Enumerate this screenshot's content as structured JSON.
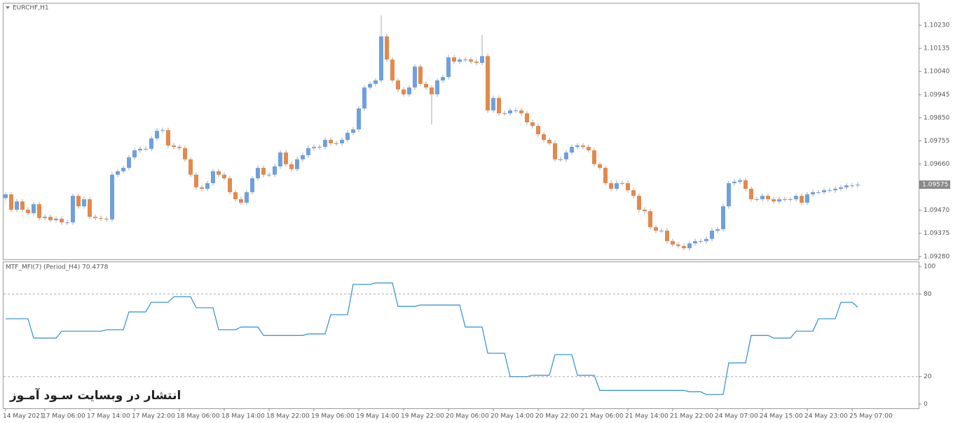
{
  "chart_data": [
    {
      "type": "candlestick",
      "title": "EURCHF,H1",
      "categories": [
        "14 May 2021",
        null,
        null,
        null,
        null,
        null,
        null,
        "17 May 06:00",
        null,
        null,
        null,
        null,
        null,
        null,
        null,
        "17 May 14:00",
        null,
        null,
        null,
        null,
        null,
        null,
        null,
        "17 May 22:00",
        null,
        null,
        null,
        null,
        null,
        null,
        null,
        "18 May 06:00",
        null,
        null,
        null,
        null,
        null,
        null,
        null,
        "18 May 14:00",
        null,
        null,
        null,
        null,
        null,
        null,
        null,
        "18 May 22:00",
        null,
        null,
        null,
        null,
        null,
        null,
        null,
        "19 May 06:00",
        null,
        null,
        null,
        null,
        null,
        null,
        null,
        "19 May 14:00",
        null,
        null,
        null,
        null,
        null,
        null,
        null,
        "19 May 22:00",
        null,
        null,
        null,
        null,
        null,
        null,
        null,
        "20 May 06:00",
        null,
        null,
        null,
        null,
        null,
        null,
        null,
        "20 May 14:00",
        null,
        null,
        null,
        null,
        null,
        null,
        null,
        "20 May 22:00",
        null,
        null,
        null,
        null,
        null,
        null,
        null,
        "21 May 06:00",
        null,
        null,
        null,
        null,
        null,
        null,
        null,
        "21 May 14:00",
        null,
        null,
        null,
        null,
        null,
        null,
        null,
        "21 May 22:00",
        null,
        null,
        null,
        null,
        null,
        null,
        null,
        "24 May 07:00",
        null,
        null,
        null,
        null,
        null,
        null,
        null,
        "24 May 15:00",
        null,
        null,
        null,
        null,
        null,
        null,
        null,
        "24 May 23:00",
        null,
        null,
        null,
        null,
        null,
        null,
        null,
        "25 May 07:00",
        null
      ],
      "ohlc": [
        [
          1.0952,
          1.09545,
          1.0951,
          1.09535
        ],
        [
          1.09535,
          1.09545,
          1.09462,
          1.09472
        ],
        [
          1.09472,
          1.09516,
          1.09462,
          1.09506
        ],
        [
          1.09506,
          1.09516,
          1.09462,
          1.09472
        ],
        [
          1.09472,
          1.09482,
          1.09448,
          1.09458
        ],
        [
          1.09458,
          1.09505,
          1.09448,
          1.09495
        ],
        [
          1.09495,
          1.09505,
          1.09428,
          1.09438
        ],
        [
          1.09438,
          1.09453,
          1.09428,
          1.09443
        ],
        [
          1.09443,
          1.09453,
          1.09419,
          1.09429
        ],
        [
          1.09429,
          1.09445,
          1.09419,
          1.09435
        ],
        [
          1.09435,
          1.09445,
          1.0941,
          1.0942
        ],
        [
          1.0942,
          1.0943,
          1.0941,
          1.0942
        ],
        [
          1.0942,
          1.09539,
          1.0941,
          1.09529
        ],
        [
          1.09529,
          1.09539,
          1.09476,
          1.09486
        ],
        [
          1.09486,
          1.09525,
          1.09476,
          1.09515
        ],
        [
          1.09515,
          1.09525,
          1.09433,
          1.09443
        ],
        [
          1.09443,
          1.09453,
          1.09428,
          1.09438
        ],
        [
          1.09438,
          1.09448,
          1.09425,
          1.09435
        ],
        [
          1.09435,
          1.09445,
          1.09422,
          1.09432
        ],
        [
          1.09432,
          1.09626,
          1.09422,
          1.09616
        ],
        [
          1.09616,
          1.0964,
          1.09606,
          1.0963
        ],
        [
          1.0963,
          1.09654,
          1.0962,
          1.09644
        ],
        [
          1.09644,
          1.09697,
          1.09634,
          1.09687
        ],
        [
          1.09687,
          1.09726,
          1.09677,
          1.09716
        ],
        [
          1.09716,
          1.09732,
          1.09706,
          1.09722
        ],
        [
          1.09722,
          1.09732,
          1.09712,
          1.09722
        ],
        [
          1.09722,
          1.09775,
          1.09712,
          1.09765
        ],
        [
          1.09765,
          1.09806,
          1.09755,
          1.09796
        ],
        [
          1.09796,
          1.09809,
          1.09786,
          1.09799
        ],
        [
          1.09799,
          1.09809,
          1.09726,
          1.09736
        ],
        [
          1.09736,
          1.09746,
          1.0972,
          1.0973
        ],
        [
          1.0973,
          1.0974,
          1.09715,
          1.09725
        ],
        [
          1.09725,
          1.09735,
          1.09669,
          1.09679
        ],
        [
          1.09679,
          1.09689,
          1.09606,
          1.09616
        ],
        [
          1.09616,
          1.09626,
          1.09554,
          1.09564
        ],
        [
          1.09564,
          1.09574,
          1.09548,
          1.09558
        ],
        [
          1.09558,
          1.09591,
          1.09548,
          1.09581
        ],
        [
          1.09581,
          1.0964,
          1.09571,
          1.0963
        ],
        [
          1.0963,
          1.0964,
          1.09606,
          1.09616
        ],
        [
          1.09616,
          1.09626,
          1.09591,
          1.09601
        ],
        [
          1.09601,
          1.09611,
          1.09534,
          1.09544
        ],
        [
          1.09544,
          1.09554,
          1.09505,
          1.09515
        ],
        [
          1.09515,
          1.09525,
          1.09491,
          1.09501
        ],
        [
          1.09501,
          1.09554,
          1.09491,
          1.09544
        ],
        [
          1.09544,
          1.09611,
          1.09534,
          1.09601
        ],
        [
          1.09601,
          1.09654,
          1.09591,
          1.09644
        ],
        [
          1.09644,
          1.09654,
          1.09606,
          1.09616
        ],
        [
          1.09616,
          1.09626,
          1.09606,
          1.09616
        ],
        [
          1.09616,
          1.0966,
          1.09606,
          1.0965
        ],
        [
          1.0965,
          1.09717,
          1.0964,
          1.09707
        ],
        [
          1.09707,
          1.09717,
          1.09649,
          1.09659
        ],
        [
          1.09659,
          1.09669,
          1.09629,
          1.09639
        ],
        [
          1.09639,
          1.09689,
          1.09629,
          1.09679
        ],
        [
          1.09679,
          1.09706,
          1.09669,
          1.09696
        ],
        [
          1.09696,
          1.09735,
          1.09686,
          1.09725
        ],
        [
          1.09725,
          1.0974,
          1.09715,
          1.0973
        ],
        [
          1.0973,
          1.0974,
          1.0972,
          1.0973
        ],
        [
          1.0973,
          1.09769,
          1.0972,
          1.09759
        ],
        [
          1.09759,
          1.09769,
          1.09735,
          1.09745
        ],
        [
          1.09745,
          1.09755,
          1.09735,
          1.09745
        ],
        [
          1.09745,
          1.09769,
          1.09735,
          1.09759
        ],
        [
          1.09759,
          1.09798,
          1.09749,
          1.09788
        ],
        [
          1.09788,
          1.09812,
          1.09778,
          1.09802
        ],
        [
          1.09802,
          1.09898,
          1.09792,
          1.09888
        ],
        [
          1.09888,
          1.09984,
          1.09878,
          1.09974
        ],
        [
          1.09974,
          1.09999,
          1.09964,
          1.09989
        ],
        [
          1.09989,
          1.10013,
          1.09979,
          1.10003
        ],
        [
          1.10003,
          1.1027,
          1.09993,
          1.10184
        ],
        [
          1.10184,
          1.10194,
          1.10079,
          1.10089
        ],
        [
          1.10089,
          1.10099,
          1.09993,
          1.10003
        ],
        [
          1.10003,
          1.10013,
          1.09956,
          1.09966
        ],
        [
          1.09966,
          1.09976,
          1.09936,
          1.09946
        ],
        [
          1.09946,
          1.09984,
          1.09936,
          1.09974
        ],
        [
          1.09974,
          1.1007,
          1.09964,
          1.1006
        ],
        [
          1.1006,
          1.1007,
          1.09979,
          1.09989
        ],
        [
          1.09989,
          1.09999,
          1.09964,
          1.09974
        ],
        [
          1.09974,
          1.09984,
          1.09822,
          1.09946
        ],
        [
          1.09946,
          1.10013,
          1.09936,
          1.10003
        ],
        [
          1.10003,
          1.10027,
          1.09993,
          1.10017
        ],
        [
          1.10017,
          1.10108,
          1.10007,
          1.10098
        ],
        [
          1.10098,
          1.10108,
          1.1007,
          1.1008
        ],
        [
          1.1008,
          1.10099,
          1.1007,
          1.10089
        ],
        [
          1.10089,
          1.10099,
          1.10079,
          1.10089
        ],
        [
          1.10089,
          1.10099,
          1.1007,
          1.1008
        ],
        [
          1.1008,
          1.1009,
          1.10065,
          1.10075
        ],
        [
          1.10075,
          1.1019,
          1.10065,
          1.10103
        ],
        [
          1.10103,
          1.10113,
          1.0987,
          1.0988
        ],
        [
          1.0988,
          1.09941,
          1.0987,
          1.09931
        ],
        [
          1.09931,
          1.09941,
          1.09858,
          1.09868
        ],
        [
          1.09868,
          1.09878,
          1.09858,
          1.09868
        ],
        [
          1.09868,
          1.0989,
          1.09858,
          1.0988
        ],
        [
          1.0988,
          1.0989,
          1.0987,
          1.0988
        ],
        [
          1.0988,
          1.0989,
          1.09858,
          1.09868
        ],
        [
          1.09868,
          1.09878,
          1.09821,
          1.09831
        ],
        [
          1.09831,
          1.09841,
          1.09806,
          1.09816
        ],
        [
          1.09816,
          1.09826,
          1.09772,
          1.09782
        ],
        [
          1.09782,
          1.09792,
          1.09749,
          1.09759
        ],
        [
          1.09759,
          1.09769,
          1.09735,
          1.09745
        ],
        [
          1.09745,
          1.09755,
          1.09669,
          1.09679
        ],
        [
          1.09679,
          1.09689,
          1.09669,
          1.09679
        ],
        [
          1.09679,
          1.09717,
          1.09669,
          1.09707
        ],
        [
          1.09707,
          1.0974,
          1.09697,
          1.0973
        ],
        [
          1.0973,
          1.09746,
          1.0972,
          1.09736
        ],
        [
          1.09736,
          1.09746,
          1.0972,
          1.0973
        ],
        [
          1.0973,
          1.0974,
          1.09706,
          1.09716
        ],
        [
          1.09716,
          1.09726,
          1.09649,
          1.09659
        ],
        [
          1.09659,
          1.09669,
          1.09634,
          1.09644
        ],
        [
          1.09644,
          1.09654,
          1.09571,
          1.09581
        ],
        [
          1.09581,
          1.09591,
          1.09548,
          1.09558
        ],
        [
          1.09558,
          1.09591,
          1.09548,
          1.09581
        ],
        [
          1.09581,
          1.09591,
          1.09571,
          1.09581
        ],
        [
          1.09581,
          1.09591,
          1.09542,
          1.09552
        ],
        [
          1.09552,
          1.09562,
          1.09519,
          1.09529
        ],
        [
          1.09529,
          1.09539,
          1.09462,
          1.09472
        ],
        [
          1.09472,
          1.09482,
          1.09456,
          1.09466
        ],
        [
          1.09466,
          1.09476,
          1.0939,
          1.094
        ],
        [
          1.094,
          1.0941,
          1.09376,
          1.09386
        ],
        [
          1.09386,
          1.09396,
          1.09376,
          1.09386
        ],
        [
          1.09386,
          1.09396,
          1.09333,
          1.09343
        ],
        [
          1.09343,
          1.09353,
          1.09319,
          1.09329
        ],
        [
          1.09329,
          1.09339,
          1.09313,
          1.09323
        ],
        [
          1.09323,
          1.09333,
          1.09304,
          1.09314
        ],
        [
          1.09314,
          1.09344,
          1.09304,
          1.09334
        ],
        [
          1.09334,
          1.09353,
          1.09324,
          1.09343
        ],
        [
          1.09343,
          1.09353,
          1.09333,
          1.09343
        ],
        [
          1.09343,
          1.09362,
          1.09333,
          1.09352
        ],
        [
          1.09352,
          1.09396,
          1.09342,
          1.09386
        ],
        [
          1.09386,
          1.09402,
          1.09376,
          1.09392
        ],
        [
          1.09392,
          1.09496,
          1.09382,
          1.09486
        ],
        [
          1.09486,
          1.09591,
          1.09476,
          1.09581
        ],
        [
          1.09581,
          1.09597,
          1.09571,
          1.09587
        ],
        [
          1.09587,
          1.09603,
          1.09577,
          1.09593
        ],
        [
          1.09593,
          1.09603,
          1.09548,
          1.09558
        ],
        [
          1.09558,
          1.09568,
          1.09505,
          1.09515
        ],
        [
          1.09515,
          1.09525,
          1.09505,
          1.09515
        ],
        [
          1.09515,
          1.09539,
          1.09505,
          1.09529
        ],
        [
          1.09529,
          1.09539,
          1.09505,
          1.09515
        ],
        [
          1.09515,
          1.09525,
          1.09496,
          1.09506
        ],
        [
          1.09506,
          1.09525,
          1.09496,
          1.09515
        ],
        [
          1.09515,
          1.09525,
          1.09505,
          1.09515
        ],
        [
          1.09515,
          1.09525,
          1.09505,
          1.09515
        ],
        [
          1.09515,
          1.09539,
          1.09505,
          1.09529
        ],
        [
          1.09529,
          1.09539,
          1.09491,
          1.09501
        ],
        [
          1.09501,
          1.09545,
          1.09491,
          1.09535
        ],
        [
          1.09535,
          1.09554,
          1.09525,
          1.09544
        ],
        [
          1.09544,
          1.09554,
          1.09534,
          1.09544
        ],
        [
          1.09544,
          1.09562,
          1.09534,
          1.09552
        ],
        [
          1.09552,
          1.09562,
          1.09542,
          1.09552
        ],
        [
          1.09552,
          1.09568,
          1.09542,
          1.09558
        ],
        [
          1.09558,
          1.09574,
          1.09548,
          1.09564
        ],
        [
          1.09564,
          1.09582,
          1.09554,
          1.09572
        ],
        [
          1.09572,
          1.09582,
          1.09562,
          1.09572
        ],
        [
          1.09572,
          1.09585,
          1.09562,
          1.09575
        ]
      ],
      "up_color": "#6fa0dc",
      "down_color": "#e3894b",
      "wick_color": "#a8a8a8",
      "ylim": [
        1.09268,
        1.10322
      ],
      "yticks": [
        {
          "value": 1.1023,
          "label": "1.10230"
        },
        1.10135,
        {
          "value": 1.1004,
          "label": "1.10040"
        },
        1.09945,
        {
          "value": 1.0985,
          "label": "1.09850"
        },
        1.09755,
        {
          "value": 1.0966,
          "label": "1.09660"
        },
        {
          "value": 1.0947,
          "label": "1.09470"
        },
        1.09375,
        {
          "value": 1.0928,
          "label": "1.09280"
        }
      ]
    },
    {
      "type": "line",
      "title": "MTF_MFI(7) (Period_H4) 70.4778",
      "color": "#2a8fd0",
      "values": [
        62,
        62,
        62,
        62,
        62,
        48,
        48,
        48,
        48,
        48,
        53,
        53,
        53,
        53,
        53,
        53,
        53,
        53,
        54,
        54,
        54,
        54,
        67,
        67,
        67,
        67,
        74,
        74,
        74,
        74,
        78,
        78,
        78,
        78,
        70,
        70,
        70,
        70,
        54,
        54,
        54,
        54,
        56,
        56,
        56,
        56,
        50,
        50,
        50,
        50,
        50,
        50,
        50,
        50,
        51,
        51,
        51,
        51,
        65,
        65,
        65,
        65,
        87,
        87,
        87,
        87,
        88,
        88,
        88,
        88,
        71,
        71,
        71,
        71,
        72,
        72,
        72,
        72,
        72,
        72,
        72,
        72,
        56,
        56,
        56,
        56,
        37,
        37,
        37,
        37,
        20,
        20,
        20,
        20,
        21,
        21,
        21,
        21,
        36,
        36,
        36,
        36,
        21,
        21,
        21,
        21,
        10,
        10,
        10,
        10,
        10,
        10,
        10,
        10,
        10,
        10,
        10,
        10,
        10,
        10,
        10,
        10,
        9,
        9,
        9,
        7,
        7,
        7,
        7,
        30,
        30,
        30,
        30,
        50,
        50,
        50,
        50,
        48,
        48,
        48,
        48,
        53,
        53,
        53,
        53,
        62,
        62,
        62,
        62,
        74,
        74,
        74,
        70.4778
      ],
      "ylim": [
        -3,
        103.6
      ],
      "yticks": [
        100,
        80,
        20,
        0
      ],
      "levels": [
        80,
        20
      ]
    }
  ],
  "watermark": "انتشار در وبسایت سـود آمـوز"
}
